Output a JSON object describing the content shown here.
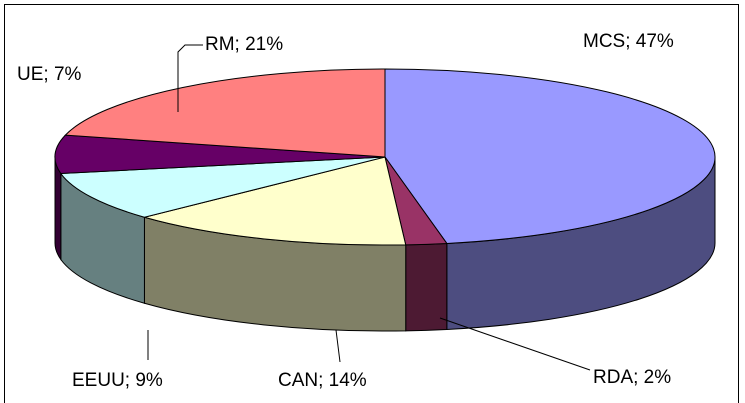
{
  "chart_data": {
    "type": "pie3d",
    "values": [
      47,
      2,
      14,
      9,
      7,
      21
    ],
    "value_labels": [
      "MCS; 47%",
      "RDA; 2%",
      "CAN; 14%",
      "EEUU; 9%",
      "UE; 7%",
      "RM; 21%"
    ],
    "colors": [
      "#9999ff",
      "#993366",
      "#ffffcc",
      "#ccffff",
      "#660066",
      "#ff8080"
    ]
  }
}
